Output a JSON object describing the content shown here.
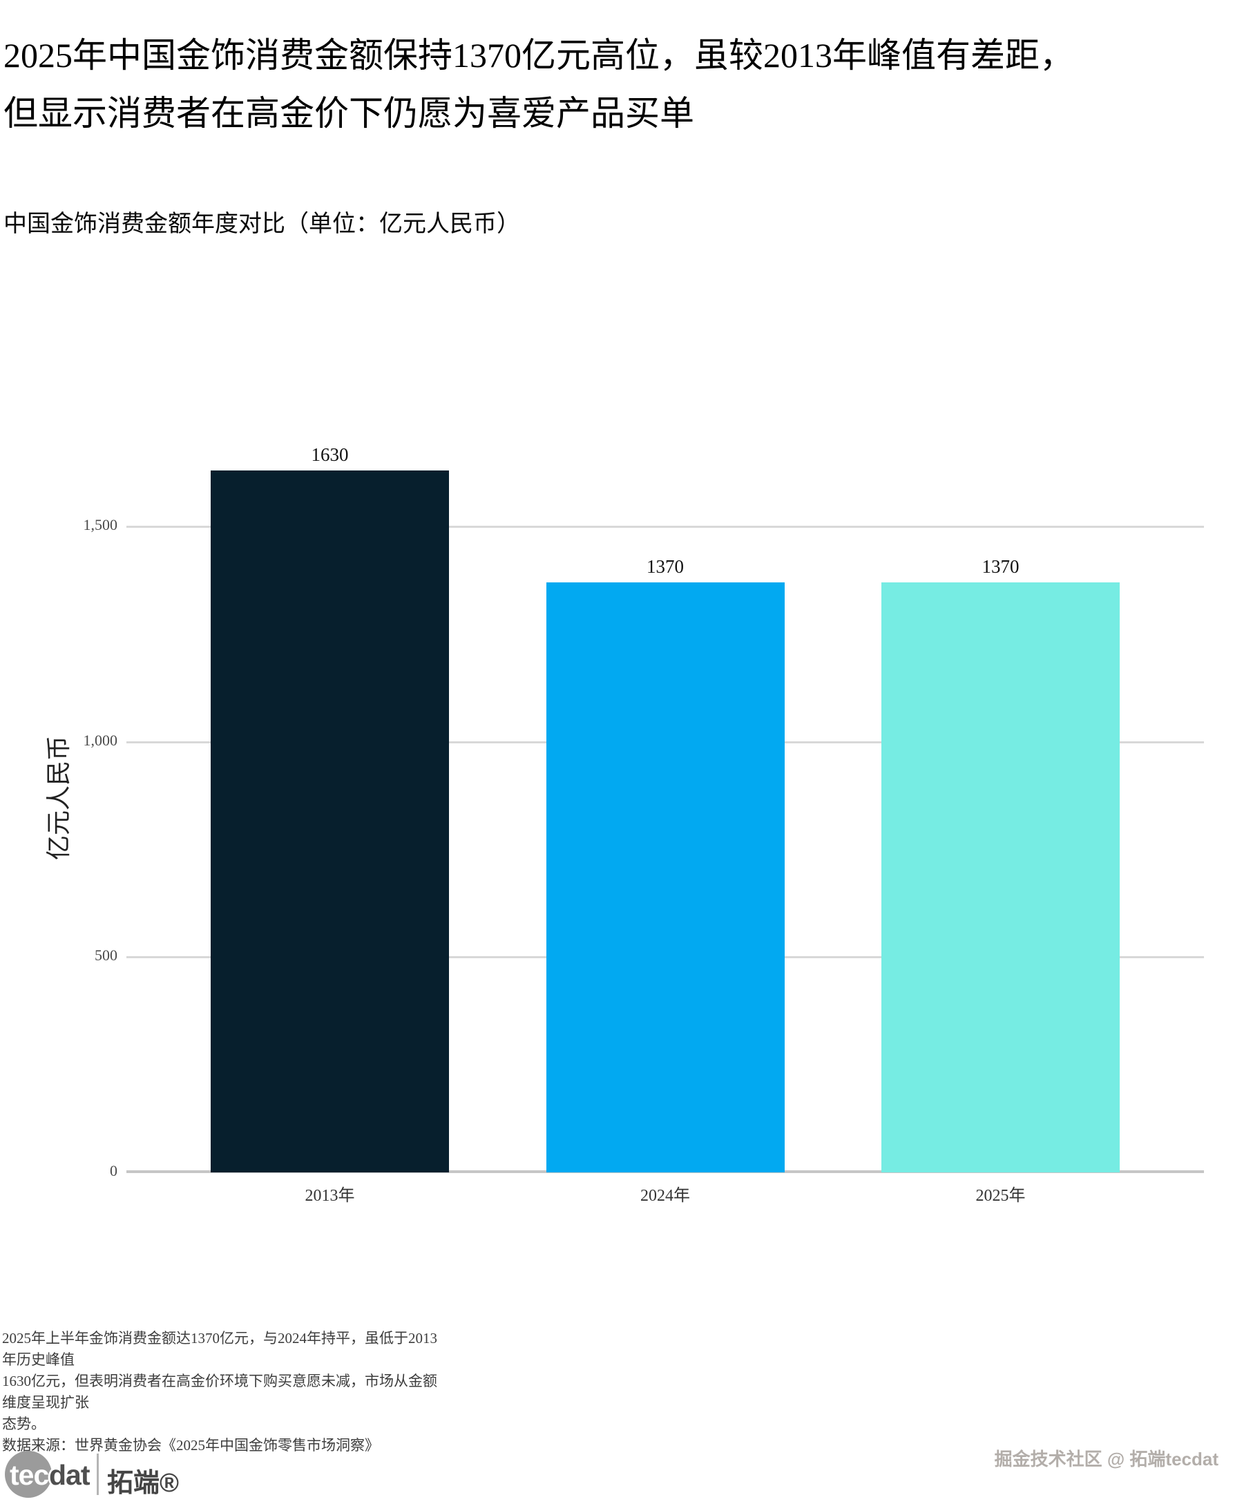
{
  "title": "2025年中国金饰消费金额保持1370亿元高位，虽较2013年峰值有差距，\n但显示消费者在高金价下仍愿为喜爱产品买单",
  "subtitle": "中国金饰消费金额年度对比（单位：亿元人民币）",
  "chart_data": {
    "type": "bar",
    "title": "中国金饰消费金额年度对比（单位：亿元人民币）",
    "categories": [
      "2013年",
      "2024年",
      "2025年"
    ],
    "values": [
      1630,
      1370,
      1370
    ],
    "value_labels": [
      "1630",
      "1370",
      "1370"
    ],
    "bar_colors": [
      "#071f2d",
      "#02a9f1",
      "#76ece3"
    ],
    "xlabel": "",
    "ylabel": "亿元人民币",
    "ylim": [
      0,
      1700
    ],
    "yticks": [
      0,
      500,
      1000,
      1500
    ],
    "ytick_labels": [
      "0",
      "500",
      "1,000",
      "1,500"
    ],
    "grid": true,
    "legend": false
  },
  "notes": "2025年上半年金饰消费金额达1370亿元，与2024年持平，虽低于2013年历史峰值\n1630亿元，但表明消费者在高金价环境下购买意愿未减，市场从金额维度呈现扩张\n态势。\n数据来源：世界黄金协会《2025年中国金饰零售市场洞察》",
  "footer": {
    "logo_tec": "tec",
    "logo_dat": "dat",
    "logo_brand": "拓端®",
    "watermark": "掘金技术社区 @ 拓端tecdat"
  },
  "colors": {
    "bar_2013": "#071f2d",
    "bar_2024": "#02a9f1",
    "bar_2025": "#76ece3",
    "gridline": "#d8d8d8",
    "axis_line": "#c6c6c6",
    "title_text": "#000000",
    "note_text": "#3d3d3d",
    "watermark_text": "#b3aeaa",
    "logo_gray": "#9b9b9b"
  }
}
